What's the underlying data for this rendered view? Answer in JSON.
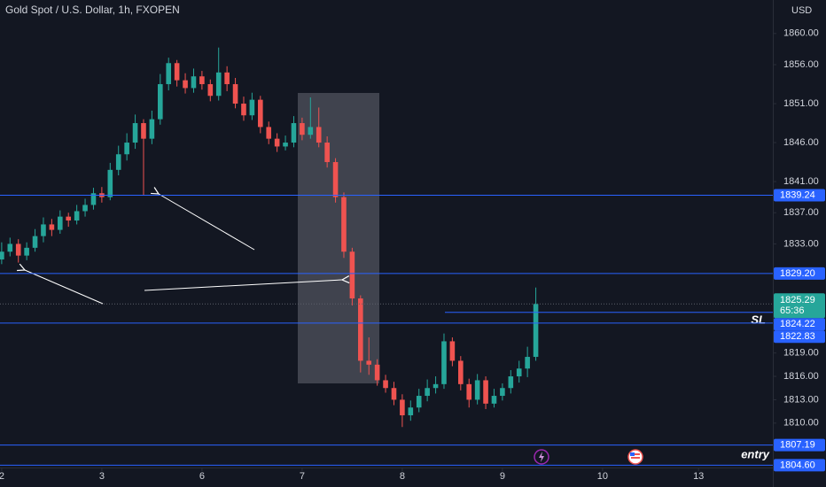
{
  "chart_data": {
    "type": "candlestick",
    "title": "Gold Spot / U.S. Dollar, 1h, FXOPEN",
    "y_axis_label": "USD",
    "x": [
      0,
      2,
      4,
      6,
      8,
      10,
      12,
      14,
      16,
      18,
      20,
      22,
      24,
      26,
      28,
      30,
      32,
      34,
      36,
      38,
      40,
      42,
      44,
      46,
      48,
      50,
      52,
      54,
      56,
      58,
      60,
      62,
      64,
      66,
      68,
      70,
      72,
      74,
      76,
      78,
      80,
      82,
      84,
      86,
      88,
      90,
      92,
      94,
      96,
      98,
      100,
      102,
      104,
      106,
      108,
      110,
      112,
      114,
      116,
      118,
      120,
      122,
      124,
      126,
      128
    ],
    "open": [
      1831.0,
      1832.0,
      1833.0,
      1831.5,
      1832.5,
      1834.0,
      1835.5,
      1834.8,
      1836.5,
      1836.0,
      1837.2,
      1838.0,
      1839.5,
      1839.0,
      1842.5,
      1844.5,
      1846.0,
      1848.5,
      1846.5,
      1849.0,
      1853.5,
      1856.2,
      1854.0,
      1853.0,
      1854.5,
      1853.5,
      1852.0,
      1855.0,
      1853.5,
      1851.0,
      1849.5,
      1851.5,
      1848.0,
      1846.5,
      1845.5,
      1846.0,
      1848.5,
      1847.0,
      1848.0,
      1846.0,
      1843.5,
      1839.0,
      1832.0,
      1826.0,
      1818.0,
      1817.5,
      1815.5,
      1814.5,
      1813.0,
      1811.0,
      1812.0,
      1813.5,
      1814.5,
      1815.0,
      1820.5,
      1818.0,
      1815.0,
      1813.0,
      1815.5,
      1812.5,
      1813.5,
      1814.5,
      1816.0,
      1817.0,
      1818.5
    ],
    "high": [
      1833.2,
      1833.8,
      1833.6,
      1833.2,
      1834.9,
      1836.4,
      1836.2,
      1837.3,
      1837.0,
      1838.0,
      1838.8,
      1840.2,
      1840.3,
      1843.4,
      1845.6,
      1847.2,
      1849.6,
      1849.0,
      1850.1,
      1854.8,
      1856.9,
      1856.6,
      1854.9,
      1855.5,
      1855.2,
      1854.1,
      1858.2,
      1855.8,
      1854.3,
      1851.9,
      1852.4,
      1852.0,
      1848.7,
      1847.2,
      1846.9,
      1849.4,
      1849.2,
      1851.8,
      1850.5,
      1846.8,
      1844.0,
      1839.6,
      1832.5,
      1826.4,
      1821.0,
      1818.2,
      1816.2,
      1815.3,
      1813.7,
      1812.9,
      1814.4,
      1815.6,
      1816.0,
      1821.5,
      1821.0,
      1818.6,
      1815.7,
      1816.3,
      1816.0,
      1814.4,
      1815.1,
      1816.8,
      1818.0,
      1819.8,
      1827.4
    ],
    "low": [
      1830.4,
      1831.4,
      1830.6,
      1830.9,
      1832.0,
      1833.2,
      1834.0,
      1834.3,
      1835.2,
      1835.5,
      1836.5,
      1837.4,
      1838.3,
      1838.6,
      1841.8,
      1843.7,
      1845.2,
      1839.3,
      1845.8,
      1848.3,
      1852.7,
      1853.2,
      1852.3,
      1852.4,
      1852.8,
      1851.3,
      1851.4,
      1852.6,
      1850.4,
      1848.8,
      1848.9,
      1847.2,
      1845.8,
      1844.8,
      1845.0,
      1845.4,
      1846.3,
      1846.5,
      1845.4,
      1842.8,
      1838.3,
      1831.2,
      1825.1,
      1816.5,
      1816.2,
      1814.8,
      1813.9,
      1812.3,
      1809.5,
      1810.3,
      1811.4,
      1812.8,
      1813.8,
      1814.4,
      1817.3,
      1814.2,
      1812.0,
      1812.4,
      1811.8,
      1812.0,
      1812.9,
      1813.8,
      1815.2,
      1815.9,
      1818.0
    ],
    "close": [
      1832.0,
      1833.0,
      1831.5,
      1832.5,
      1834.0,
      1835.5,
      1834.8,
      1836.5,
      1836.0,
      1837.2,
      1838.0,
      1839.5,
      1839.0,
      1842.5,
      1844.5,
      1846.0,
      1848.5,
      1846.5,
      1849.0,
      1853.5,
      1856.2,
      1854.0,
      1853.0,
      1854.5,
      1853.5,
      1852.0,
      1855.0,
      1853.5,
      1851.0,
      1849.5,
      1851.5,
      1848.0,
      1846.5,
      1845.5,
      1846.0,
      1848.5,
      1847.0,
      1848.0,
      1846.0,
      1843.5,
      1839.0,
      1832.0,
      1826.0,
      1818.0,
      1817.5,
      1815.5,
      1814.5,
      1813.0,
      1811.0,
      1812.0,
      1813.5,
      1814.5,
      1815.0,
      1820.5,
      1818.0,
      1815.0,
      1813.0,
      1815.5,
      1812.5,
      1813.5,
      1814.5,
      1816.0,
      1817.0,
      1818.5,
      1825.29
    ],
    "up_color": "#26a69a",
    "down_color": "#ef5350",
    "xlim": [
      -0.4,
      184.8
    ],
    "xticks": [
      {
        "value": 0,
        "label": "2"
      },
      {
        "value": 24,
        "label": "3"
      },
      {
        "value": 48,
        "label": "6"
      },
      {
        "value": 72,
        "label": "7"
      },
      {
        "value": 96,
        "label": "8"
      },
      {
        "value": 120,
        "label": "9"
      },
      {
        "value": 144,
        "label": "10"
      },
      {
        "value": 167,
        "label": "13"
      }
    ],
    "ylim": [
      1804.3,
      1864.3
    ],
    "yticks": [
      {
        "value": 1860,
        "label": "1860.00"
      },
      {
        "value": 1856,
        "label": "1856.00"
      },
      {
        "value": 1851,
        "label": "1851.00"
      },
      {
        "value": 1846,
        "label": "1846.00"
      },
      {
        "value": 1841,
        "label": "1841.00"
      },
      {
        "value": 1837,
        "label": "1837.00"
      },
      {
        "value": 1833,
        "label": "1833.00"
      },
      {
        "value": 1819,
        "label": "1819.00"
      },
      {
        "value": 1816,
        "label": "1816.00"
      },
      {
        "value": 1813,
        "label": "1813.00"
      },
      {
        "value": 1810,
        "label": "1810.00"
      }
    ],
    "countdown": "65:36",
    "levels": [
      1839.24,
      {
        "value": 1829.2,
        "label": "1829.20"
      },
      1824.22,
      1822.83,
      1807.19,
      {
        "value": 1804.6,
        "label": "1804.60"
      }
    ],
    "level_color": "#2962ff",
    "sl_label": "SL",
    "entry_label": "entry",
    "grid": false
  }
}
